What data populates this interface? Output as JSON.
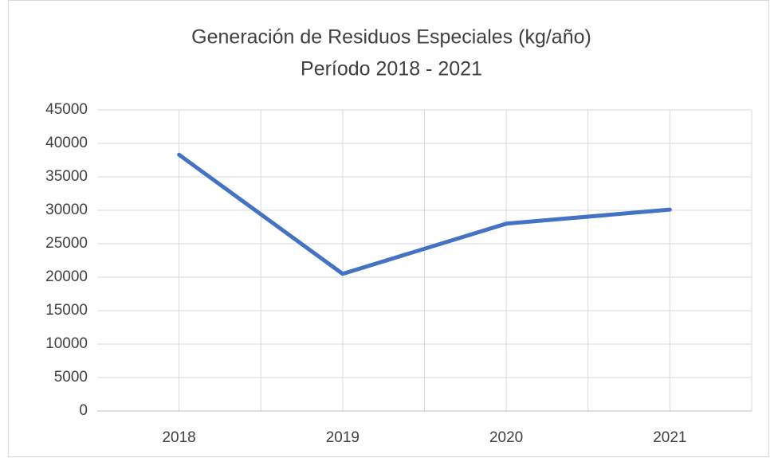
{
  "chart_data": {
    "type": "line",
    "title": "Generación de Residuos Especiales (kg/año)",
    "subtitle": "Período 2018 - 2021",
    "categories": [
      "2018",
      "2019",
      "2020",
      "2021"
    ],
    "series": [
      {
        "name": "Residuos Especiales",
        "color": "#4472c4",
        "values": [
          38300,
          20500,
          28000,
          30100
        ]
      }
    ],
    "ylim": [
      0,
      45000
    ],
    "yticks": [
      0,
      5000,
      10000,
      15000,
      20000,
      25000,
      30000,
      35000,
      40000,
      45000
    ],
    "grid": true
  }
}
